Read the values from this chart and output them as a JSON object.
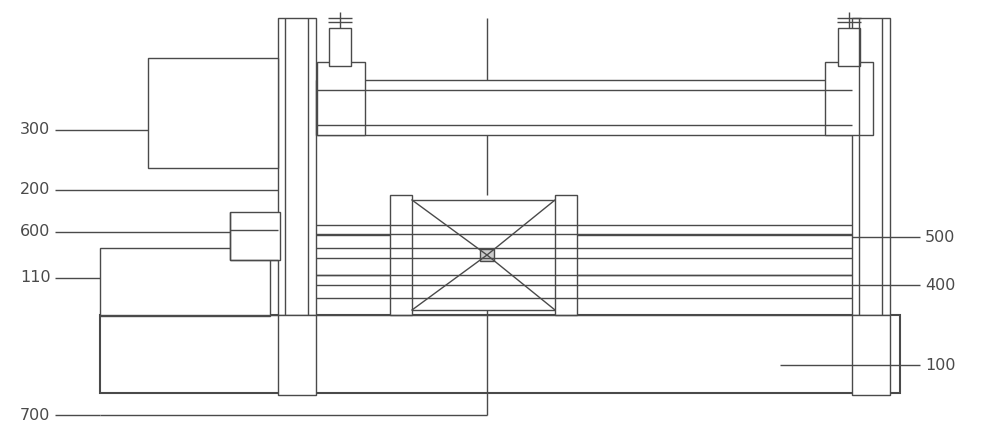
{
  "bg": "#ffffff",
  "lc": "#4a4a4a",
  "lw": 1.0,
  "tlw": 1.5
}
